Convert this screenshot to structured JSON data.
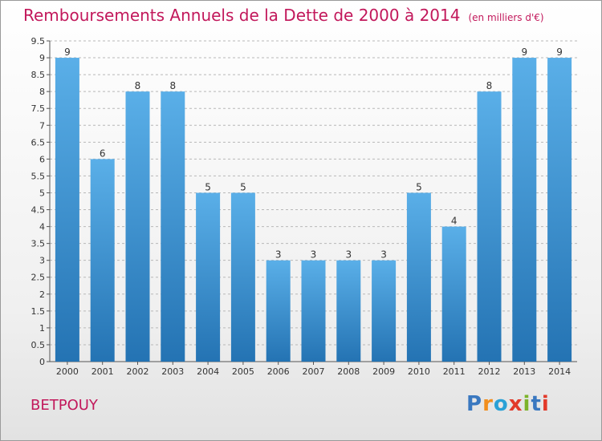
{
  "header": {
    "title": "Remboursements Annuels de la Dette de 2000 à 2014",
    "unit": "(en milliers d'€)"
  },
  "commune": "BETPOUY",
  "logo": {
    "letters": [
      "P",
      "r",
      "o",
      "x",
      "i",
      "t",
      "i"
    ]
  },
  "colors": {
    "bar_light": "#5aafe8",
    "bar_dark": "#2473b3",
    "title": "#c2185b",
    "axis": "#555555",
    "grid": "#b8b8b8"
  },
  "chart_data": {
    "type": "bar",
    "categories": [
      "2000",
      "2001",
      "2002",
      "2003",
      "2004",
      "2005",
      "2006",
      "2007",
      "2008",
      "2009",
      "2010",
      "2011",
      "2012",
      "2013",
      "2014"
    ],
    "values": [
      9,
      6,
      8,
      8,
      5,
      5,
      3,
      3,
      3,
      3,
      5,
      4,
      8,
      9,
      9
    ],
    "data_labels": [
      "9",
      "6",
      "8",
      "8",
      "5",
      "5",
      "3",
      "3",
      "3",
      "3",
      "5",
      "4",
      "8",
      "9",
      "9"
    ],
    "yticks": [
      "0",
      "0.5",
      "1",
      "1.5",
      "2",
      "2.5",
      "3",
      "3.5",
      "4",
      "4.5",
      "5",
      "5.5",
      "6",
      "6.5",
      "7",
      "7.5",
      "8",
      "8.5",
      "9",
      "9.5"
    ],
    "ylim": [
      0,
      9.5
    ],
    "grid": true,
    "title": "Remboursements Annuels de la Dette de 2000 à 2014"
  }
}
